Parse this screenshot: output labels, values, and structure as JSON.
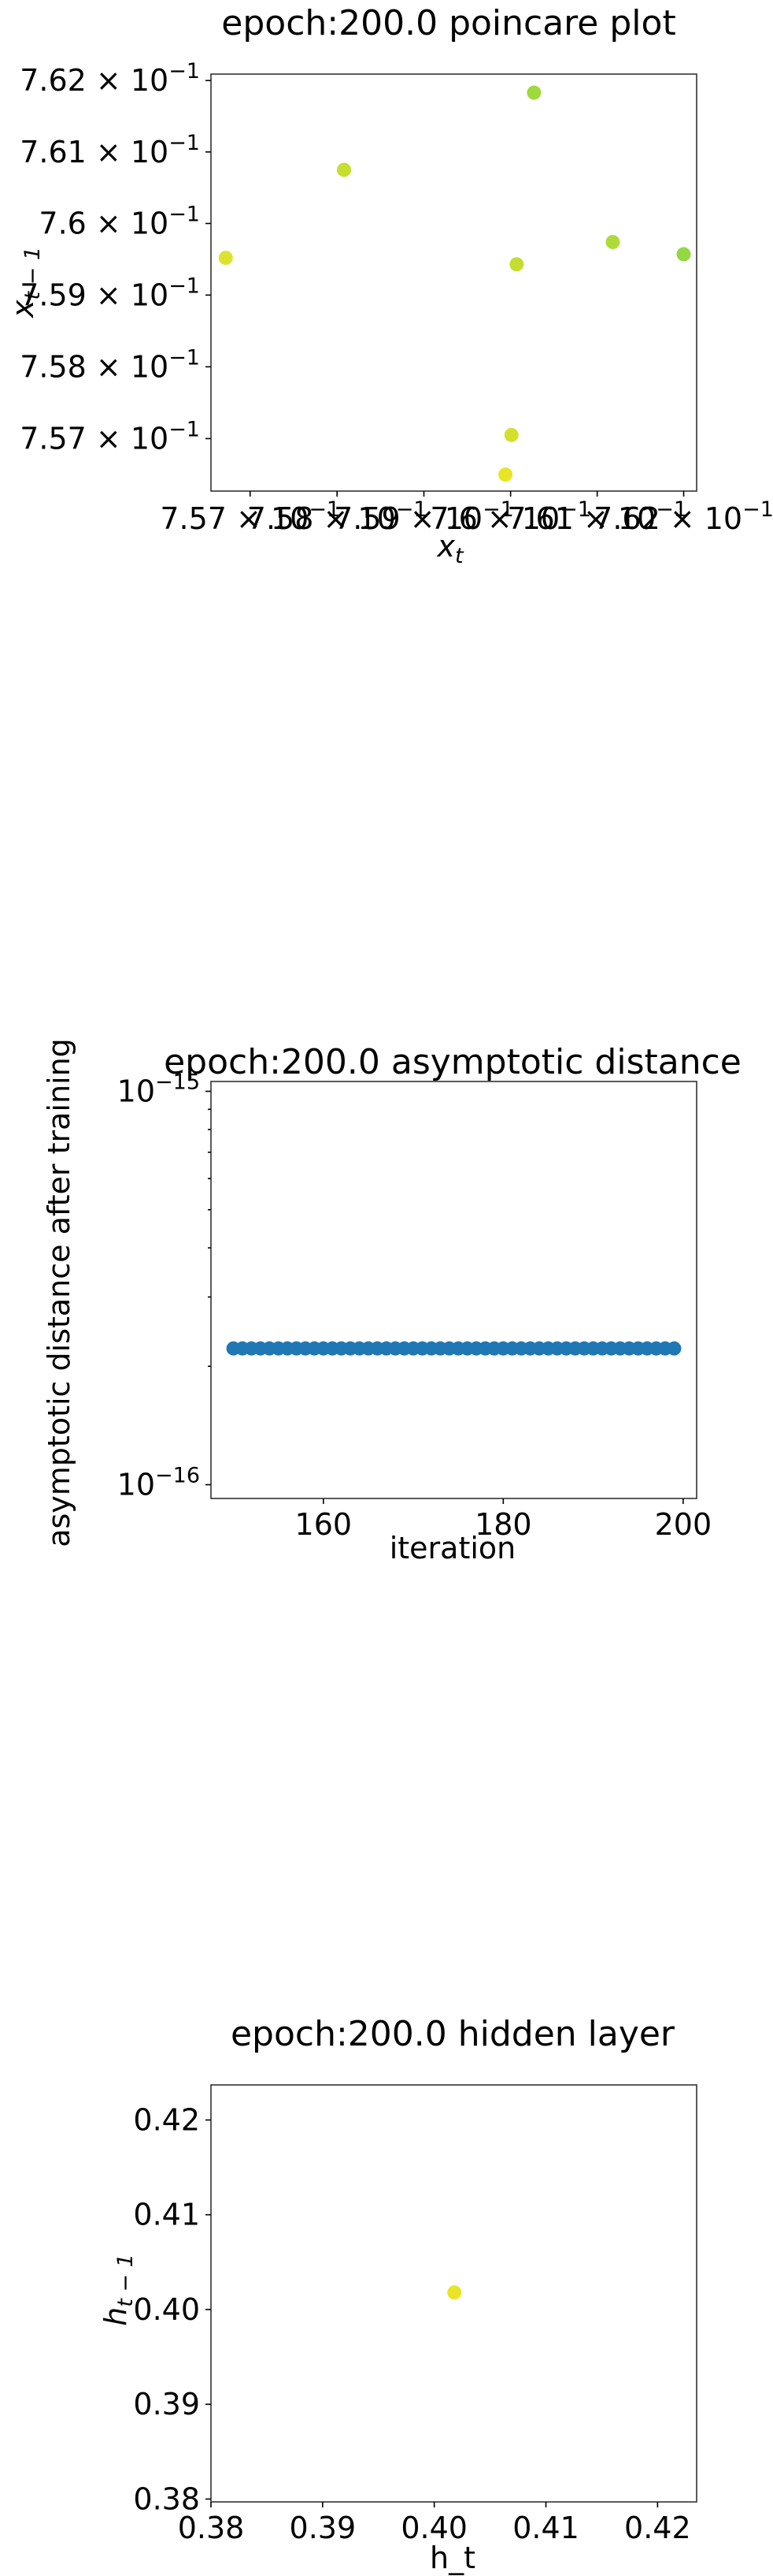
{
  "chart_data": [
    {
      "type": "scatter",
      "title": "epoch:200.0 poincare plot",
      "xlabel": "x_t",
      "ylabel": "x_{t-1}",
      "xscale": "log",
      "yscale": "log",
      "xlim": [
        0.75655,
        0.76215
      ],
      "ylim": [
        0.75627,
        0.76209
      ],
      "xticks": [
        {
          "value": 0.757,
          "mantissa": "7.57",
          "exp": "−1"
        },
        {
          "value": 0.758,
          "mantissa": "7.58",
          "exp": "−1"
        },
        {
          "value": 0.759,
          "mantissa": "7.59",
          "exp": "−1"
        },
        {
          "value": 0.76,
          "mantissa": "7.6",
          "exp": "−1"
        },
        {
          "value": 0.761,
          "mantissa": "7.61",
          "exp": "−1"
        },
        {
          "value": 0.762,
          "mantissa": "7.62",
          "exp": "−1"
        }
      ],
      "yticks": [
        {
          "value": 0.757,
          "mantissa": "7.57",
          "exp": "−1"
        },
        {
          "value": 0.758,
          "mantissa": "7.58",
          "exp": "−1"
        },
        {
          "value": 0.759,
          "mantissa": "7.59",
          "exp": "−1"
        },
        {
          "value": 0.76,
          "mantissa": "7.6",
          "exp": "−1"
        },
        {
          "value": 0.761,
          "mantissa": "7.61",
          "exp": "−1"
        },
        {
          "value": 0.762,
          "mantissa": "7.62",
          "exp": "−1"
        }
      ],
      "points": [
        {
          "x": 0.75672,
          "y": 0.75952,
          "color": "#dde22e"
        },
        {
          "x": 0.75808,
          "y": 0.76075,
          "color": "#c6de2e"
        },
        {
          "x": 0.75994,
          "y": 0.7565,
          "color": "#e8e527"
        },
        {
          "x": 0.76001,
          "y": 0.75705,
          "color": "#d2e02c"
        },
        {
          "x": 0.76007,
          "y": 0.75943,
          "color": "#c4dd30"
        },
        {
          "x": 0.76027,
          "y": 0.76183,
          "color": "#9fd93c"
        },
        {
          "x": 0.76118,
          "y": 0.75974,
          "color": "#aedb37"
        },
        {
          "x": 0.762,
          "y": 0.75957,
          "color": "#93d741"
        }
      ],
      "grid": false
    },
    {
      "type": "scatter",
      "title": "epoch:200.0 asymptotic distance",
      "xlabel": "iteration",
      "ylabel": "asymptotic distance after training",
      "yscale": "log",
      "xlim": [
        147.5,
        201.5
      ],
      "ylim_log10": [
        -16.035,
        -14.975
      ],
      "xticks": [
        160,
        180,
        200
      ],
      "yticks": [
        {
          "log10": -15,
          "base": "10",
          "exp": "−15"
        },
        {
          "log10": -16,
          "base": "10",
          "exp": "−16"
        }
      ],
      "x_start": 150,
      "x_end": 199,
      "y_value": 2.22e-16,
      "color": "#1f77b4",
      "grid": false
    },
    {
      "type": "scatter",
      "title": "epoch:200.0 hidden layer",
      "xlabel": "h_t",
      "ylabel": "h_{t-1}",
      "xlim": [
        0.38,
        0.4235
      ],
      "ylim": [
        0.3797,
        0.4237
      ],
      "xticks": [
        "0.38",
        "0.39",
        "0.40",
        "0.41",
        "0.42"
      ],
      "yticks": [
        "0.38",
        "0.39",
        "0.40",
        "0.41",
        "0.42"
      ],
      "points": [
        {
          "x": 0.4018,
          "y": 0.4018,
          "color": "#e8e527"
        }
      ],
      "grid": false
    }
  ]
}
